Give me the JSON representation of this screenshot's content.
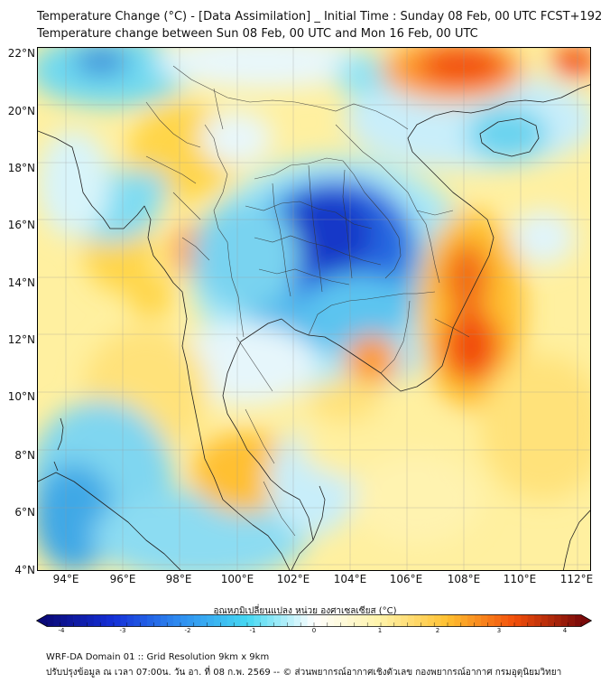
{
  "header": {
    "title": "Temperature Change (°C) - [Data Assimilation] _ Initial Time : Sunday 08 Feb, 00 UTC FCST+192",
    "subtitle": "Temperature change between Sun 08 Feb, 00 UTC and Mon 16 Feb, 00 UTC"
  },
  "map": {
    "lat_labels": [
      "22°N",
      "20°N",
      "18°N",
      "16°N",
      "14°N",
      "12°N",
      "10°N",
      "8°N",
      "6°N",
      "4°N"
    ],
    "lon_labels": [
      "94°E",
      "96°E",
      "98°E",
      "100°E",
      "102°E",
      "104°E",
      "106°E",
      "108°E",
      "110°E",
      "112°E"
    ]
  },
  "colorbar": {
    "title": "อุณหภูมิเปลี่ยนแปลง หน่วย องศาเซลเซียส (°C)",
    "ticks": [
      "-4",
      "-3",
      "-2",
      "-1",
      "0",
      "1",
      "2",
      "3",
      "4"
    ],
    "colors": {
      "neg4": "#0a0a7a",
      "neg3": "#1530d8",
      "neg2": "#2f8ef0",
      "neg1": "#45d8f2",
      "zero": "#ffffff",
      "pos1": "#fff3a8",
      "pos2": "#ffc030",
      "pos3": "#f24e0a",
      "pos4": "#7a0a0a"
    }
  },
  "footer": {
    "line1": "WRF-DA Domain 01 :: Grid Resolution 9km x 9km",
    "line2": "ปรับปรุงข้อมูล ณ เวลา 07:00น. วัน อา. ที่ 08 ก.พ. 2569 -- © ส่วนพยากรณ์อากาศเชิงตัวเลข กองพยากรณ์อากาศ กรมอุตุนิยมวิทยา"
  }
}
